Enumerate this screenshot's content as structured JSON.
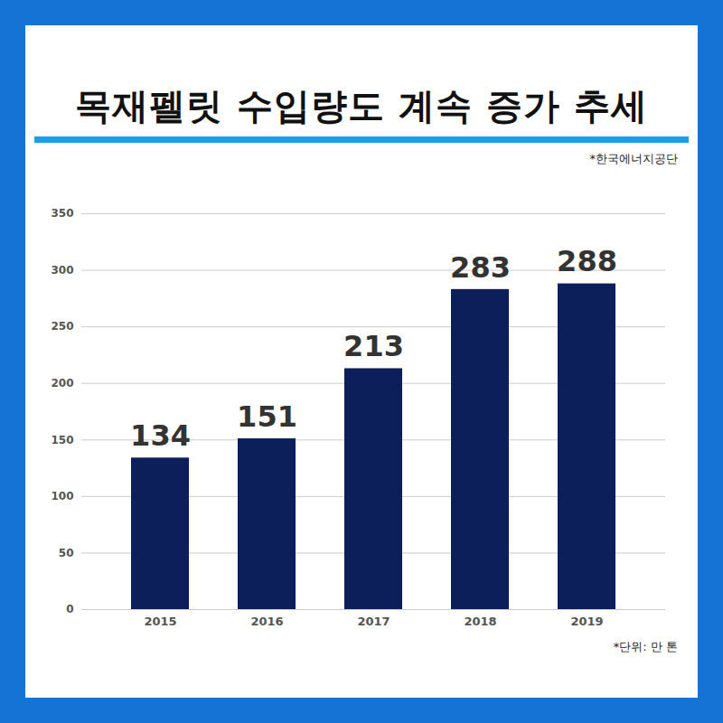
{
  "chart_data": {
    "type": "bar",
    "title": "목재펠릿 수입량도 계속 증가 추세",
    "annotations": [
      "*한국에너지공단",
      "*단위: 만 톤"
    ],
    "categories": [
      "2015",
      "2016",
      "2017",
      "2018",
      "2019"
    ],
    "values": [
      134,
      151,
      213,
      283,
      288
    ],
    "color": "#0c1f5a",
    "ylim": [
      0,
      350
    ],
    "yticks": [
      0,
      50,
      100,
      150,
      200,
      250,
      300,
      350
    ],
    "grid": true,
    "data_labels": true
  }
}
